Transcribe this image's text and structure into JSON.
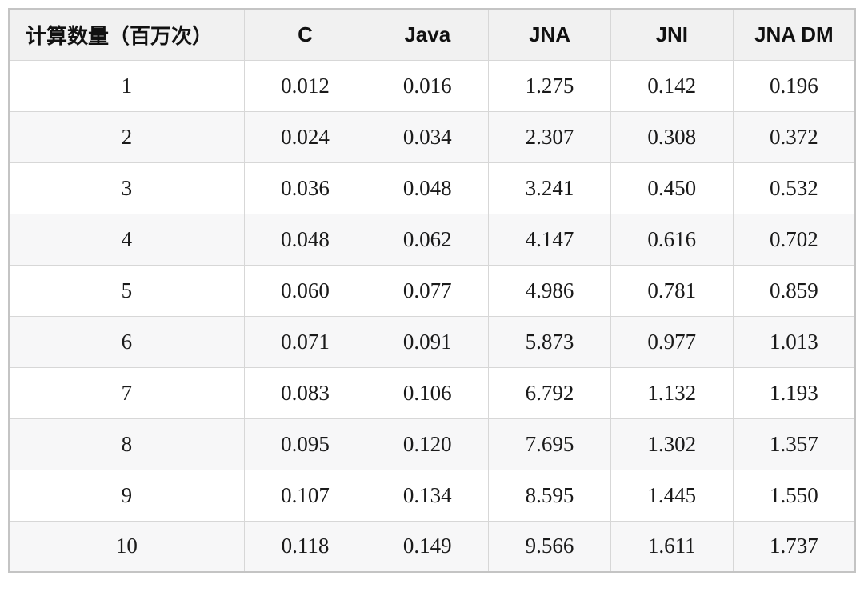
{
  "table": {
    "header": [
      "计算数量（百万次）",
      "C",
      "Java",
      "JNA",
      "JNI",
      "JNA DM"
    ],
    "rows": [
      [
        "1",
        "0.012",
        "0.016",
        "1.275",
        "0.142",
        "0.196"
      ],
      [
        "2",
        "0.024",
        "0.034",
        "2.307",
        "0.308",
        "0.372"
      ],
      [
        "3",
        "0.036",
        "0.048",
        "3.241",
        "0.450",
        "0.532"
      ],
      [
        "4",
        "0.048",
        "0.062",
        "4.147",
        "0.616",
        "0.702"
      ],
      [
        "5",
        "0.060",
        "0.077",
        "4.986",
        "0.781",
        "0.859"
      ],
      [
        "6",
        "0.071",
        "0.091",
        "5.873",
        "0.977",
        "1.013"
      ],
      [
        "7",
        "0.083",
        "0.106",
        "6.792",
        "1.132",
        "1.193"
      ],
      [
        "8",
        "0.095",
        "0.120",
        "7.695",
        "1.302",
        "1.357"
      ],
      [
        "9",
        "0.107",
        "0.134",
        "8.595",
        "1.445",
        "1.550"
      ],
      [
        "10",
        "0.118",
        "0.149",
        "9.566",
        "1.611",
        "1.737"
      ]
    ]
  },
  "chart_data": {
    "type": "table",
    "title": "",
    "xlabel": "计算数量（百万次）",
    "columns": [
      "计算数量（百万次）",
      "C",
      "Java",
      "JNA",
      "JNI",
      "JNA DM"
    ],
    "x": [
      1,
      2,
      3,
      4,
      5,
      6,
      7,
      8,
      9,
      10
    ],
    "series": [
      {
        "name": "C",
        "values": [
          0.012,
          0.024,
          0.036,
          0.048,
          0.06,
          0.071,
          0.083,
          0.095,
          0.107,
          0.118
        ]
      },
      {
        "name": "Java",
        "values": [
          0.016,
          0.034,
          0.048,
          0.062,
          0.077,
          0.091,
          0.106,
          0.12,
          0.134,
          0.149
        ]
      },
      {
        "name": "JNA",
        "values": [
          1.275,
          2.307,
          3.241,
          4.147,
          4.986,
          5.873,
          6.792,
          7.695,
          8.595,
          9.566
        ]
      },
      {
        "name": "JNI",
        "values": [
          0.142,
          0.308,
          0.45,
          0.616,
          0.781,
          0.977,
          1.132,
          1.302,
          1.445,
          1.611
        ]
      },
      {
        "name": "JNA DM",
        "values": [
          0.196,
          0.372,
          0.532,
          0.702,
          0.859,
          1.013,
          1.193,
          1.357,
          1.55,
          1.737
        ]
      }
    ]
  },
  "colors": {
    "header_background": "#f1f1f1",
    "zebra_row_background": "#f7f7f8",
    "border": "#d7d7d7",
    "outer_border": "#c4c4c4",
    "text": "#1a1a1a"
  }
}
